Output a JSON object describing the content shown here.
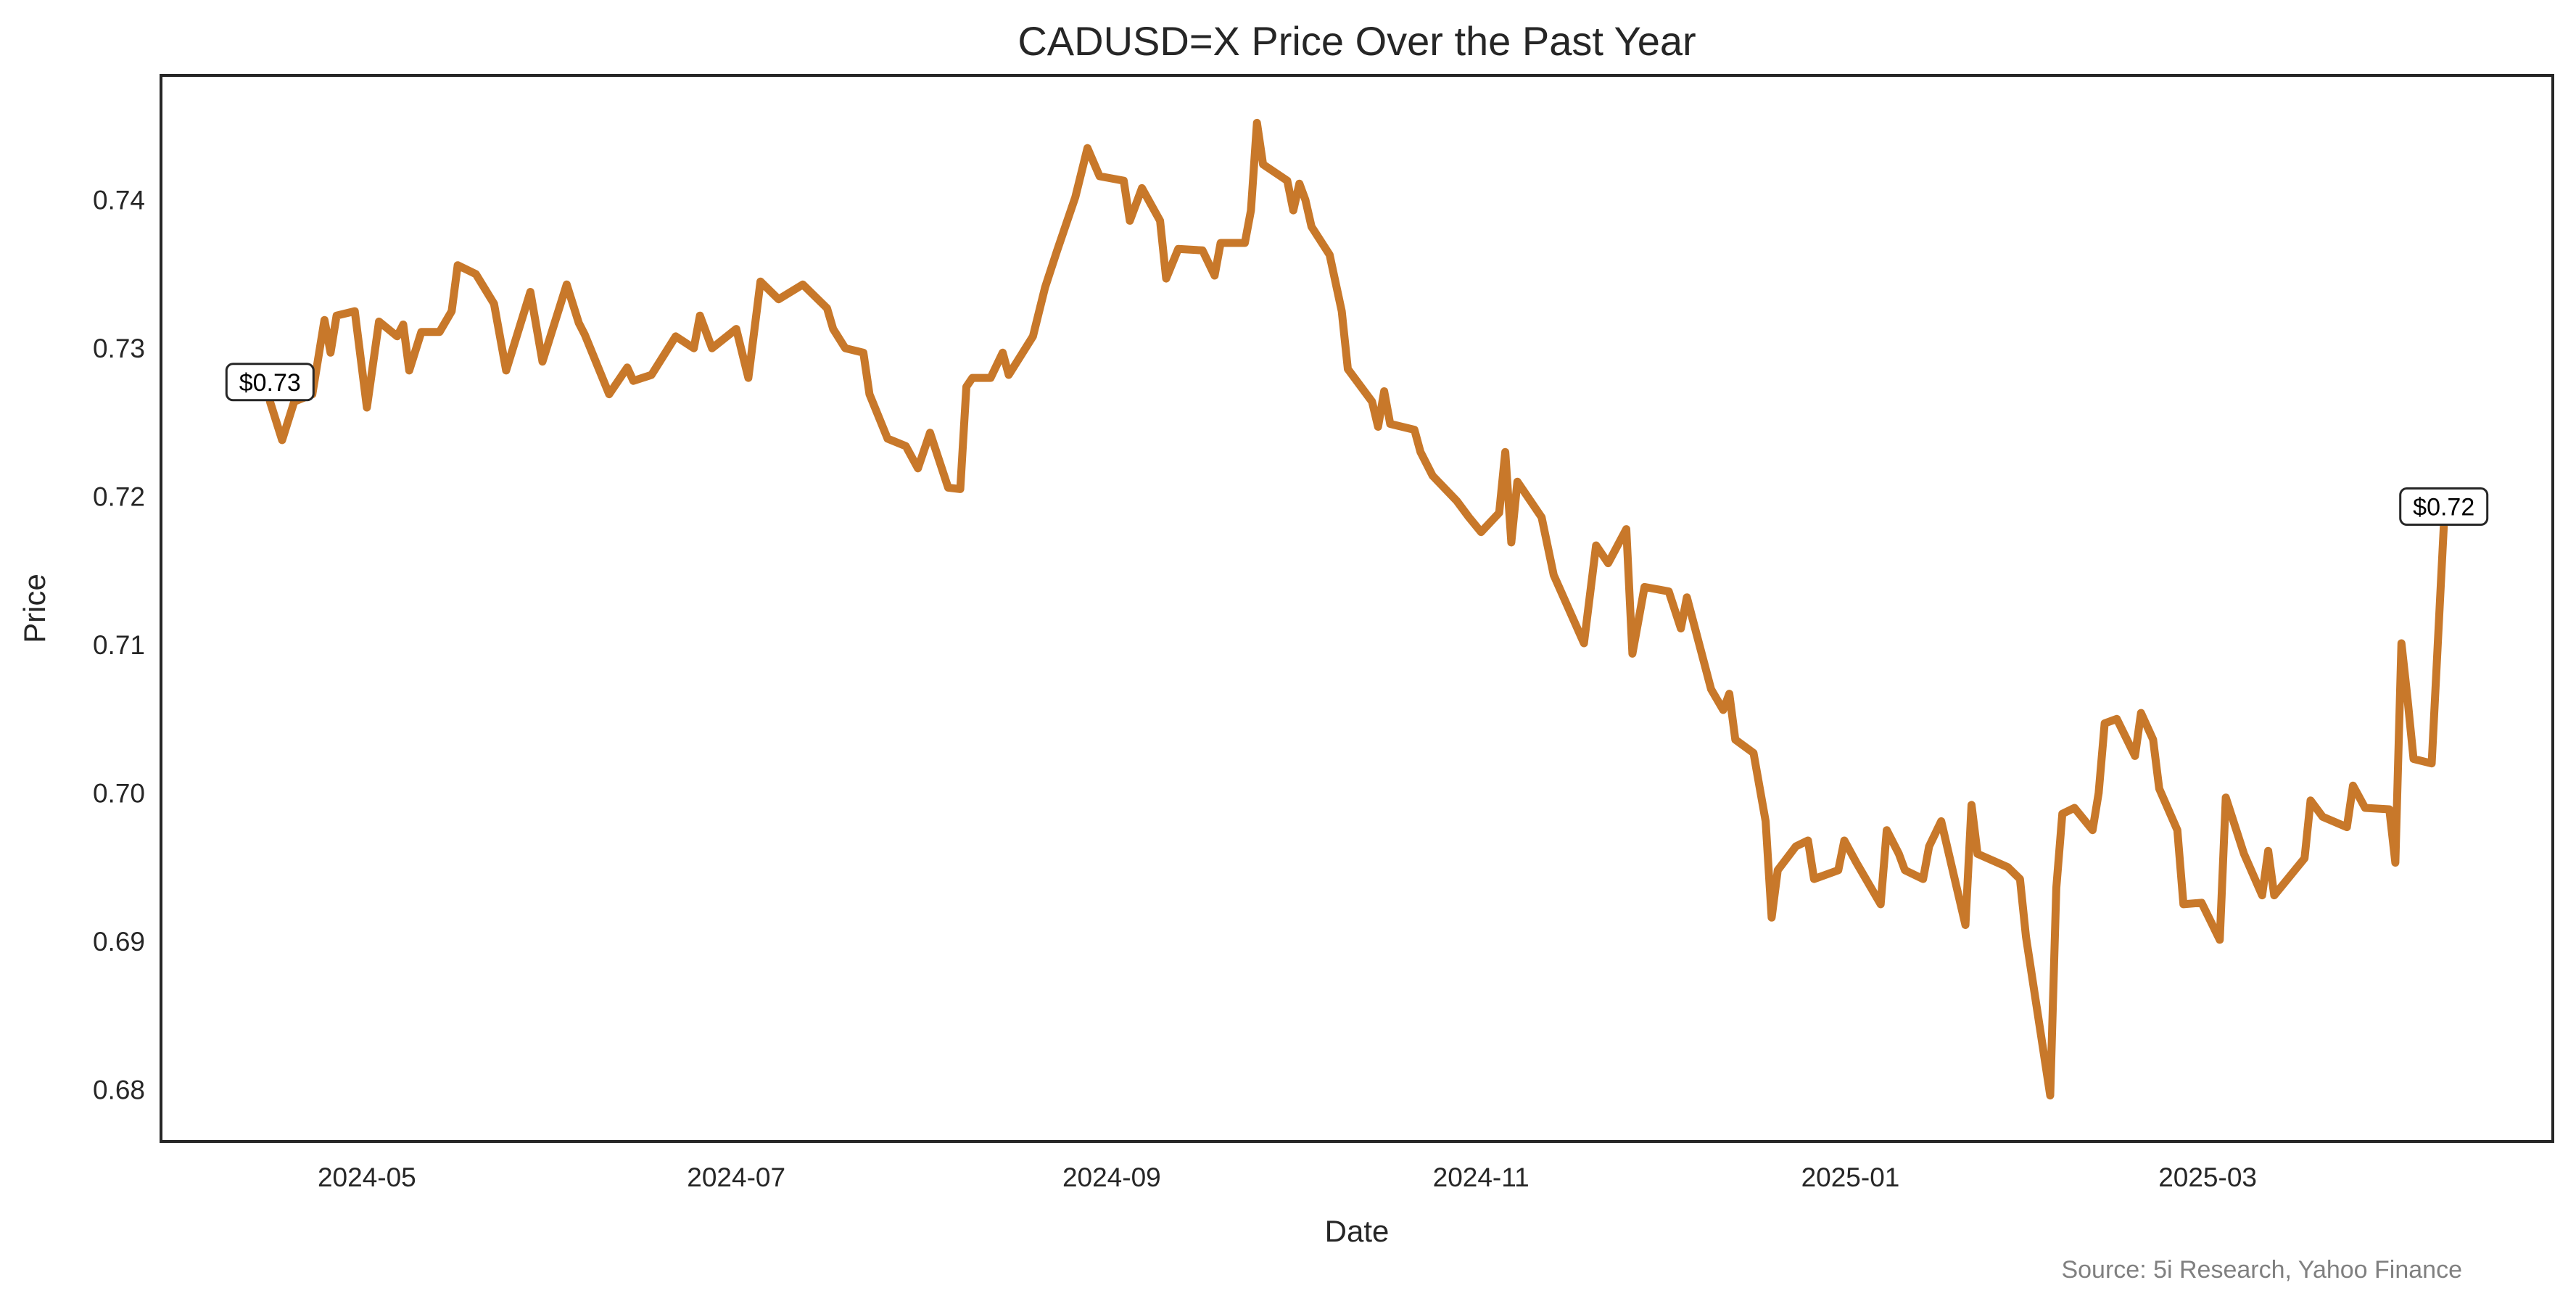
{
  "chart_data": {
    "type": "line",
    "title": "CADUSD=X Price Over the Past Year",
    "xlabel": "Date",
    "ylabel": "Price",
    "xlim": [
      "2024-03-28",
      "2025-04-27"
    ],
    "ylim": [
      0.6765,
      0.7484
    ],
    "grid": false,
    "x_ticks": [
      "2024-05",
      "2024-07",
      "2024-09",
      "2024-11",
      "2025-01",
      "2025-03"
    ],
    "y_ticks": [
      "0.68",
      "0.69",
      "0.70",
      "0.71",
      "0.72",
      "0.73",
      "0.74"
    ],
    "line_color": "#c8782a",
    "annotations": [
      {
        "text": "$0.73",
        "at": "start"
      },
      {
        "text": "$0.72",
        "at": "end"
      }
    ],
    "source": "Source: 5i Research, Yahoo Finance",
    "series": [
      {
        "points": [
          [
            "2024-04-15",
            0.7264
          ],
          [
            "2024-04-17",
            0.7238
          ],
          [
            "2024-04-19",
            0.7264
          ],
          [
            "2024-04-22",
            0.7269
          ],
          [
            "2024-04-24",
            0.7319
          ],
          [
            "2024-04-25",
            0.7297
          ],
          [
            "2024-04-26",
            0.7322
          ],
          [
            "2024-04-29",
            0.7325
          ],
          [
            "2024-05-01",
            0.726
          ],
          [
            "2024-05-03",
            0.7318
          ],
          [
            "2024-05-06",
            0.7308
          ],
          [
            "2024-05-07",
            0.7316
          ],
          [
            "2024-05-08",
            0.7285
          ],
          [
            "2024-05-10",
            0.7311
          ],
          [
            "2024-05-13",
            0.7311
          ],
          [
            "2024-05-15",
            0.7325
          ],
          [
            "2024-05-16",
            0.7356
          ],
          [
            "2024-05-19",
            0.735
          ],
          [
            "2024-05-22",
            0.733
          ],
          [
            "2024-05-24",
            0.7285
          ],
          [
            "2024-05-28",
            0.7338
          ],
          [
            "2024-05-30",
            0.7291
          ],
          [
            "2024-06-03",
            0.7343
          ],
          [
            "2024-06-05",
            0.7317
          ],
          [
            "2024-06-06",
            0.7309
          ],
          [
            "2024-06-10",
            0.7269
          ],
          [
            "2024-06-13",
            0.7287
          ],
          [
            "2024-06-14",
            0.7278
          ],
          [
            "2024-06-17",
            0.7282
          ],
          [
            "2024-06-21",
            0.7308
          ],
          [
            "2024-06-24",
            0.73
          ],
          [
            "2024-06-25",
            0.7322
          ],
          [
            "2024-06-27",
            0.73
          ],
          [
            "2024-07-01",
            0.7313
          ],
          [
            "2024-07-03",
            0.728
          ],
          [
            "2024-07-05",
            0.7345
          ],
          [
            "2024-07-08",
            0.7333
          ],
          [
            "2024-07-12",
            0.7343
          ],
          [
            "2024-07-16",
            0.7327
          ],
          [
            "2024-07-17",
            0.7313
          ],
          [
            "2024-07-19",
            0.73
          ],
          [
            "2024-07-22",
            0.7297
          ],
          [
            "2024-07-23",
            0.7269
          ],
          [
            "2024-07-26",
            0.7239
          ],
          [
            "2024-07-29",
            0.7234
          ],
          [
            "2024-07-31",
            0.7219
          ],
          [
            "2024-08-02",
            0.7243
          ],
          [
            "2024-08-05",
            0.7206
          ],
          [
            "2024-08-07",
            0.7205
          ],
          [
            "2024-08-08",
            0.7274
          ],
          [
            "2024-08-09",
            0.728
          ],
          [
            "2024-08-12",
            0.728
          ],
          [
            "2024-08-14",
            0.7297
          ],
          [
            "2024-08-15",
            0.7282
          ],
          [
            "2024-08-19",
            0.7308
          ],
          [
            "2024-08-21",
            0.7341
          ],
          [
            "2024-08-23",
            0.7366
          ],
          [
            "2024-08-26",
            0.7402
          ],
          [
            "2024-08-28",
            0.7435
          ],
          [
            "2024-08-30",
            0.7416
          ],
          [
            "2024-09-03",
            0.7413
          ],
          [
            "2024-09-04",
            0.7386
          ],
          [
            "2024-09-06",
            0.7408
          ],
          [
            "2024-09-09",
            0.7386
          ],
          [
            "2024-09-10",
            0.7347
          ],
          [
            "2024-09-12",
            0.7367
          ],
          [
            "2024-09-16",
            0.7366
          ],
          [
            "2024-09-18",
            0.7349
          ],
          [
            "2024-09-19",
            0.7371
          ],
          [
            "2024-09-23",
            0.7371
          ],
          [
            "2024-09-24",
            0.7393
          ],
          [
            "2024-09-25",
            0.7452
          ],
          [
            "2024-09-26",
            0.7424
          ],
          [
            "2024-09-30",
            0.7413
          ],
          [
            "2024-10-01",
            0.7393
          ],
          [
            "2024-10-02",
            0.7411
          ],
          [
            "2024-10-03",
            0.74
          ],
          [
            "2024-10-04",
            0.7382
          ],
          [
            "2024-10-07",
            0.7363
          ],
          [
            "2024-10-09",
            0.7325
          ],
          [
            "2024-10-10",
            0.7286
          ],
          [
            "2024-10-14",
            0.7264
          ],
          [
            "2024-10-15",
            0.7247
          ],
          [
            "2024-10-16",
            0.7271
          ],
          [
            "2024-10-17",
            0.7249
          ],
          [
            "2024-10-21",
            0.7245
          ],
          [
            "2024-10-22",
            0.723
          ],
          [
            "2024-10-24",
            0.7214
          ],
          [
            "2024-10-28",
            0.7197
          ],
          [
            "2024-10-30",
            0.7186
          ],
          [
            "2024-11-01",
            0.7176
          ],
          [
            "2024-11-04",
            0.7189
          ],
          [
            "2024-11-05",
            0.723
          ],
          [
            "2024-11-06",
            0.7169
          ],
          [
            "2024-11-07",
            0.721
          ],
          [
            "2024-11-11",
            0.7186
          ],
          [
            "2024-11-13",
            0.7147
          ],
          [
            "2024-11-18",
            0.7101
          ],
          [
            "2024-11-20",
            0.7167
          ],
          [
            "2024-11-22",
            0.7155
          ],
          [
            "2024-11-25",
            0.7178
          ],
          [
            "2024-11-26",
            0.7094
          ],
          [
            "2024-11-28",
            0.7139
          ],
          [
            "2024-12-02",
            0.7136
          ],
          [
            "2024-12-04",
            0.7111
          ],
          [
            "2024-12-05",
            0.7132
          ],
          [
            "2024-12-09",
            0.707
          ],
          [
            "2024-12-11",
            0.7056
          ],
          [
            "2024-12-12",
            0.7067
          ],
          [
            "2024-12-13",
            0.7036
          ],
          [
            "2024-12-16",
            0.7027
          ],
          [
            "2024-12-18",
            0.6981
          ],
          [
            "2024-12-19",
            0.6916
          ],
          [
            "2024-12-20",
            0.6948
          ],
          [
            "2024-12-23",
            0.6964
          ],
          [
            "2024-12-25",
            0.6968
          ],
          [
            "2024-12-26",
            0.6942
          ],
          [
            "2024-12-30",
            0.6948
          ],
          [
            "2024-12-31",
            0.6968
          ],
          [
            "2025-01-02",
            0.6953
          ],
          [
            "2025-01-06",
            0.6925
          ],
          [
            "2025-01-07",
            0.6975
          ],
          [
            "2025-01-09",
            0.6959
          ],
          [
            "2025-01-10",
            0.6948
          ],
          [
            "2025-01-13",
            0.6942
          ],
          [
            "2025-01-14",
            0.6964
          ],
          [
            "2025-01-16",
            0.6981
          ],
          [
            "2025-01-20",
            0.6911
          ],
          [
            "2025-01-21",
            0.6992
          ],
          [
            "2025-01-22",
            0.6959
          ],
          [
            "2025-01-27",
            0.695
          ],
          [
            "2025-01-29",
            0.6942
          ],
          [
            "2025-01-30",
            0.6903
          ],
          [
            "2025-02-03",
            0.6796
          ],
          [
            "2025-02-04",
            0.6936
          ],
          [
            "2025-02-05",
            0.6986
          ],
          [
            "2025-02-07",
            0.699
          ],
          [
            "2025-02-10",
            0.6975
          ],
          [
            "2025-02-11",
            0.7
          ],
          [
            "2025-02-12",
            0.7047
          ],
          [
            "2025-02-14",
            0.705
          ],
          [
            "2025-02-17",
            0.7025
          ],
          [
            "2025-02-18",
            0.7054
          ],
          [
            "2025-02-20",
            0.7036
          ],
          [
            "2025-02-21",
            0.7003
          ],
          [
            "2025-02-24",
            0.6975
          ],
          [
            "2025-02-25",
            0.6925
          ],
          [
            "2025-02-28",
            0.6926
          ],
          [
            "2025-03-03",
            0.6901
          ],
          [
            "2025-03-04",
            0.6997
          ],
          [
            "2025-03-07",
            0.6959
          ],
          [
            "2025-03-10",
            0.6931
          ],
          [
            "2025-03-11",
            0.6961
          ],
          [
            "2025-03-12",
            0.6931
          ],
          [
            "2025-03-17",
            0.6956
          ],
          [
            "2025-03-18",
            0.6995
          ],
          [
            "2025-03-20",
            0.6984
          ],
          [
            "2025-03-24",
            0.6977
          ],
          [
            "2025-03-25",
            0.7005
          ],
          [
            "2025-03-27",
            0.699
          ],
          [
            "2025-03-31",
            0.6989
          ],
          [
            "2025-04-01",
            0.6953
          ],
          [
            "2025-04-02",
            0.7101
          ],
          [
            "2025-04-03",
            0.7064
          ],
          [
            "2025-04-04",
            0.7023
          ],
          [
            "2025-04-07",
            0.702
          ],
          [
            "2025-04-09",
            0.718
          ]
        ]
      }
    ]
  }
}
